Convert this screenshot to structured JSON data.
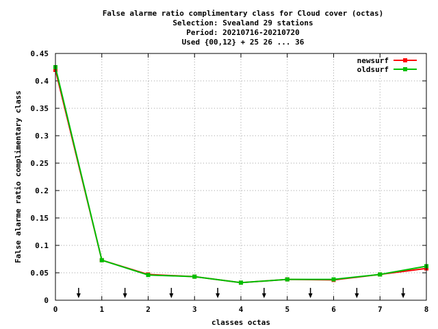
{
  "chart_data": {
    "type": "line",
    "title_lines": [
      "False alarme ratio complimentary class  for Cloud cover (octas)",
      "Selection: Svealand     29 stations",
      "Period: 20210716-20210720",
      "Used {00,12} + 25 26 ... 36"
    ],
    "xlabel": "classes octas",
    "ylabel": "False alarme ratio complimentary class",
    "xlim": [
      0,
      8
    ],
    "ylim": [
      0,
      0.45
    ],
    "x_ticks": [
      "0",
      "1",
      "2",
      "3",
      "4",
      "5",
      "6",
      "7",
      "8"
    ],
    "y_ticks": [
      "0",
      "0.05",
      "0.1",
      "0.15",
      "0.2",
      "0.25",
      "0.3",
      "0.35",
      "0.4",
      "0.45"
    ],
    "grid": true,
    "legend_position": "top-right",
    "arrow_markers_x": [
      0.5,
      1.5,
      2.5,
      3.5,
      4.5,
      5.5,
      6.5,
      7.5
    ],
    "x": [
      0,
      1,
      2,
      3,
      4,
      5,
      6,
      7,
      8
    ],
    "series": [
      {
        "name": "newsurf",
        "color": "#ff0000",
        "values": [
          0.42,
          0.073,
          0.047,
          0.043,
          0.032,
          0.038,
          0.037,
          0.047,
          0.058
        ]
      },
      {
        "name": "oldsurf",
        "color": "#00c000",
        "values": [
          0.425,
          0.073,
          0.046,
          0.043,
          0.032,
          0.038,
          0.038,
          0.047,
          0.062
        ]
      }
    ]
  }
}
